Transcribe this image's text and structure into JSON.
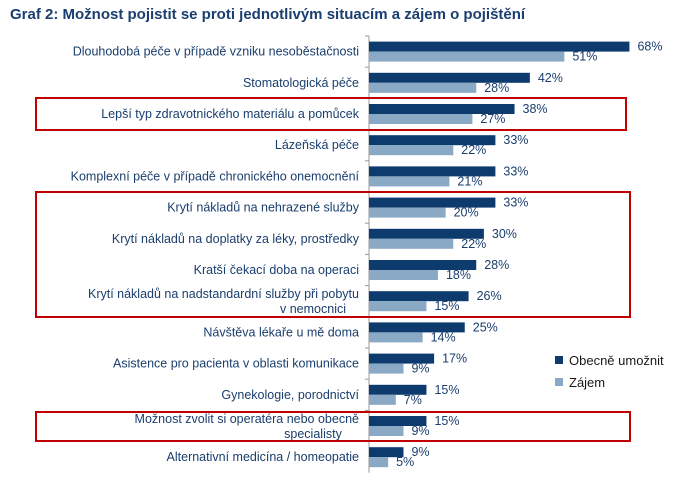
{
  "title": "Graf 2: Možnost pojistit se proti jednotlivým situacím a zájem o pojištění",
  "colors": {
    "primary": "#0d3b6e",
    "secondary": "#8aa9c4",
    "highlight": "#c00000"
  },
  "chart_data": {
    "type": "bar",
    "orientation": "horizontal",
    "categories": [
      "Dlouhodobá péče v případě vzniku nesoběstačnosti",
      "Stomatologická péče",
      "Lepší typ zdravotnického materiálu a pomůcek",
      "Lázeňská péče",
      "Komplexní péče v případě chronického onemocnění",
      "Krytí nákladů na nehrazené služby",
      "Krytí nákladů na doplatky za léky, prostředky",
      "Kratší čekací doba na operaci",
      "Krytí nákladů na nadstandardní služby při pobytu v nemocnici",
      "Návštěva lékaře u mě doma",
      "Asistence pro pacienta v oblasti komunikace",
      "Gynekologie, porodnictví",
      "Možnost zvolit si operatéra nebo obecně specialisty",
      "Alternativní medicína / homeopatie"
    ],
    "series": [
      {
        "name": "Obecně umožnit",
        "values": [
          68,
          42,
          38,
          33,
          33,
          33,
          30,
          28,
          26,
          25,
          17,
          15,
          15,
          9
        ]
      },
      {
        "name": "Zájem",
        "values": [
          51,
          28,
          27,
          22,
          21,
          20,
          22,
          18,
          15,
          14,
          9,
          7,
          9,
          5
        ]
      }
    ],
    "value_suffix": "%",
    "legend_position": "right",
    "highlighted_categories": [
      2,
      5,
      6,
      7,
      8,
      12
    ]
  }
}
